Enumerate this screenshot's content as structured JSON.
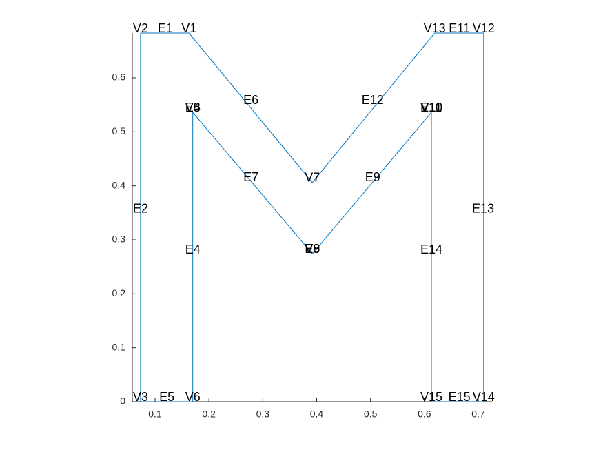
{
  "chart_data": {
    "type": "line",
    "series": [
      {
        "color": "#0072bd",
        "x": [
          0.073,
          0.163,
          0.392,
          0.619,
          0.71,
          0.71,
          0.613,
          0.613,
          0.392,
          0.17,
          0.17,
          0.073,
          0.073
        ],
        "values": [
          0.683,
          0.683,
          0.406,
          0.683,
          0.683,
          0,
          0,
          0.536,
          0.274,
          0.536,
          0,
          0,
          0.683
        ]
      }
    ],
    "xlim": [
      0.0578,
      0.7256
    ],
    "ylim": [
      0,
      0.683
    ],
    "xticks": [
      0.1,
      0.2,
      0.3,
      0.4,
      0.5,
      0.6,
      0.7
    ],
    "yticks": [
      0,
      0.1,
      0.2,
      0.3,
      0.4,
      0.5,
      0.6
    ],
    "annotations": [
      {
        "text": "V1",
        "x": 0.163,
        "y": 0.683
      },
      {
        "text": "V2",
        "x": 0.073,
        "y": 0.683
      },
      {
        "text": "V3",
        "x": 0.073,
        "y": 0
      },
      {
        "text": "V4",
        "x": 0.17,
        "y": 0.536
      },
      {
        "text": "V5",
        "x": 0.17,
        "y": 0.536
      },
      {
        "text": "E3",
        "x": 0.17,
        "y": 0.536
      },
      {
        "text": "V6",
        "x": 0.17,
        "y": 0
      },
      {
        "text": "V7",
        "x": 0.392,
        "y": 0.406
      },
      {
        "text": "V8",
        "x": 0.392,
        "y": 0.274
      },
      {
        "text": "V9",
        "x": 0.392,
        "y": 0.274
      },
      {
        "text": "E8",
        "x": 0.392,
        "y": 0.274
      },
      {
        "text": "V10",
        "x": 0.613,
        "y": 0.536
      },
      {
        "text": "V11",
        "x": 0.613,
        "y": 0.536
      },
      {
        "text": "E10",
        "x": 0.613,
        "y": 0.536
      },
      {
        "text": "V12",
        "x": 0.71,
        "y": 0.683
      },
      {
        "text": "V13",
        "x": 0.619,
        "y": 0.683
      },
      {
        "text": "V14",
        "x": 0.71,
        "y": 0
      },
      {
        "text": "V15",
        "x": 0.613,
        "y": 0
      },
      {
        "text": "E1",
        "x": 0.119,
        "y": 0.683
      },
      {
        "text": "E2",
        "x": 0.073,
        "y": 0.349
      },
      {
        "text": "E4",
        "x": 0.17,
        "y": 0.273
      },
      {
        "text": "E5",
        "x": 0.122,
        "y": 0
      },
      {
        "text": "E6",
        "x": 0.278,
        "y": 0.55
      },
      {
        "text": "E7",
        "x": 0.278,
        "y": 0.407
      },
      {
        "text": "E9",
        "x": 0.504,
        "y": 0.407
      },
      {
        "text": "E11",
        "x": 0.665,
        "y": 0.683
      },
      {
        "text": "E12",
        "x": 0.504,
        "y": 0.55
      },
      {
        "text": "E13",
        "x": 0.709,
        "y": 0.349
      },
      {
        "text": "E14",
        "x": 0.613,
        "y": 0.273
      },
      {
        "text": "E15",
        "x": 0.665,
        "y": 0
      }
    ]
  }
}
